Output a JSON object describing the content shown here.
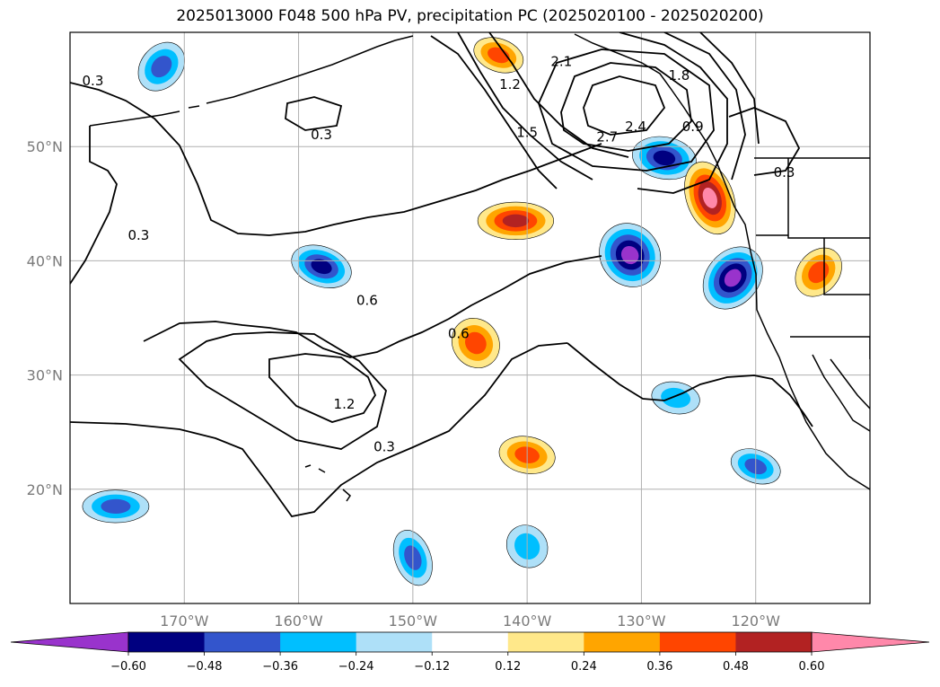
{
  "chart_data": {
    "type": "heatmap",
    "title": "2025013000 F048 500 hPa PV, precipitation PC (2025020100 - 2025020200)",
    "map_extent": {
      "lon": [
        -180,
        -110
      ],
      "lat": [
        10,
        60
      ]
    },
    "x_ticks": [
      {
        "lon": -170,
        "label": "170°W"
      },
      {
        "lon": -160,
        "label": "160°W"
      },
      {
        "lon": -150,
        "label": "150°W"
      },
      {
        "lon": -140,
        "label": "140°W"
      },
      {
        "lon": -130,
        "label": "130°W"
      },
      {
        "lon": -120,
        "label": "120°W"
      }
    ],
    "y_ticks": [
      {
        "lat": 20,
        "label": "20°N"
      },
      {
        "lat": 30,
        "label": "30°N"
      },
      {
        "lat": 40,
        "label": "40°N"
      },
      {
        "lat": 50,
        "label": "50°N"
      }
    ],
    "grid": true,
    "colorbar": {
      "orientation": "horizontal",
      "extend": "both",
      "levels": [
        -0.6,
        -0.48,
        -0.36,
        -0.24,
        -0.12,
        0.12,
        0.24,
        0.36,
        0.48,
        0.6
      ],
      "tick_labels": [
        "−0.60",
        "−0.48",
        "−0.36",
        "−0.24",
        "−0.12",
        "0.12",
        "0.24",
        "0.36",
        "0.48",
        "0.60"
      ],
      "colors": [
        "#9933cc",
        "#000080",
        "#3355cc",
        "#00bfff",
        "#aee0f8",
        "#ffffff",
        "#ffe88a",
        "#ffa500",
        "#ff4500",
        "#b22222",
        "#ff88aa"
      ]
    },
    "pv_contour_labels": [
      {
        "lon": -178,
        "lat": 55.5,
        "label": "0.3"
      },
      {
        "lon": -158,
        "lat": 50.8,
        "label": "0.3"
      },
      {
        "lon": -174,
        "lat": 42,
        "label": "0.3"
      },
      {
        "lon": -152.5,
        "lat": 23.5,
        "label": "0.3"
      },
      {
        "lon": -117.5,
        "lat": 47.5,
        "label": "0.3"
      },
      {
        "lon": -154,
        "lat": 36.3,
        "label": "0.6"
      },
      {
        "lon": -146,
        "lat": 33.4,
        "label": "0.6"
      },
      {
        "lon": -156,
        "lat": 27.2,
        "label": "1.2"
      },
      {
        "lon": -141.5,
        "lat": 55.2,
        "label": "1.2"
      },
      {
        "lon": -140,
        "lat": 51,
        "label": "1.5"
      },
      {
        "lon": -126.7,
        "lat": 56,
        "label": "1.8"
      },
      {
        "lon": -125.5,
        "lat": 51.5,
        "label": "0.9"
      },
      {
        "lon": -137,
        "lat": 57.2,
        "label": "2.1"
      },
      {
        "lon": -133,
        "lat": 50.6,
        "label": "2.7"
      },
      {
        "lon": -130.5,
        "lat": 51.5,
        "label": "2.4"
      }
    ],
    "precip_pc_areas": [
      {
        "lon": -158,
        "lat": 39.5,
        "peak": -0.55
      },
      {
        "lon": -131,
        "lat": 40.5,
        "peak": -0.6
      },
      {
        "lon": -128,
        "lat": 49,
        "peak": -0.5
      },
      {
        "lon": -122,
        "lat": 38.5,
        "peak": -0.6
      },
      {
        "lon": -176,
        "lat": 18.5,
        "peak": -0.4
      },
      {
        "lon": -150,
        "lat": 14,
        "peak": -0.4
      },
      {
        "lon": -120,
        "lat": 22,
        "peak": -0.4
      },
      {
        "lon": -140,
        "lat": 15,
        "peak": -0.3
      },
      {
        "lon": -127,
        "lat": 28,
        "peak": -0.3
      },
      {
        "lon": -172,
        "lat": 57,
        "peak": -0.4
      },
      {
        "lon": -141,
        "lat": 43.5,
        "peak": 0.5
      },
      {
        "lon": -124,
        "lat": 45.5,
        "peak": 0.62
      },
      {
        "lon": -142.5,
        "lat": 58,
        "peak": 0.4
      },
      {
        "lon": -144.5,
        "lat": 32.8,
        "peak": 0.4
      },
      {
        "lon": -140,
        "lat": 23,
        "peak": 0.4
      },
      {
        "lon": -114.5,
        "lat": 39,
        "peak": 0.4
      }
    ]
  }
}
